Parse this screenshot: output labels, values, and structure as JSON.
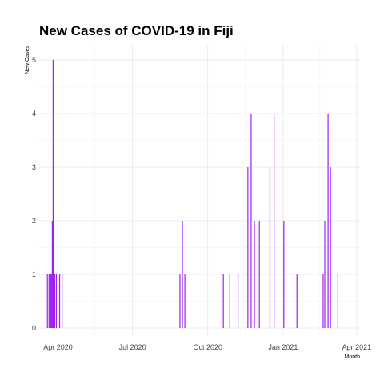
{
  "chart_data": {
    "type": "bar",
    "title": "New Cases of COVID-19 in Fiji",
    "xlabel": "Month",
    "ylabel": "New Cases",
    "ylim": [
      0,
      5.4
    ],
    "y_ticks": [
      0,
      1,
      2,
      3,
      4,
      5
    ],
    "x_range": [
      "2020-03-09",
      "2021-04-05"
    ],
    "x_ticks": [
      {
        "date": "2020-04-01",
        "label": "Apr 2020"
      },
      {
        "date": "2020-07-01",
        "label": "Jul 2020"
      },
      {
        "date": "2020-10-01",
        "label": "Oct 2020"
      },
      {
        "date": "2021-01-01",
        "label": "Jan 2021"
      },
      {
        "date": "2021-04-01",
        "label": "Apr 2021"
      }
    ],
    "x_minor_ticks": [
      "2020-05-16",
      "2020-08-16",
      "2020-11-16",
      "2021-02-15"
    ],
    "grid": true,
    "bar_color": "#a020f0",
    "series": [
      {
        "x": [
          "2020-03-19",
          "2020-03-21",
          "2020-03-22",
          "2020-03-23",
          "2020-03-24",
          "2020-03-25",
          "2020-03-26",
          "2020-03-27",
          "2020-03-28",
          "2020-03-30",
          "2020-04-03",
          "2020-04-06",
          "2020-08-28",
          "2020-08-31",
          "2020-09-03",
          "2020-10-20",
          "2020-10-28",
          "2020-11-07",
          "2020-11-19",
          "2020-11-23",
          "2020-11-27",
          "2020-12-03",
          "2020-12-16",
          "2020-12-21",
          "2021-01-02",
          "2021-01-18",
          "2021-02-19",
          "2021-02-21",
          "2021-02-25",
          "2021-02-28",
          "2021-03-09"
        ],
        "values": [
          1,
          1,
          1,
          1,
          1,
          2,
          5,
          2,
          1,
          1,
          1,
          1,
          1,
          2,
          1,
          1,
          1,
          1,
          3,
          4,
          2,
          2,
          3,
          4,
          2,
          1,
          1,
          2,
          4,
          3,
          1
        ]
      }
    ]
  }
}
